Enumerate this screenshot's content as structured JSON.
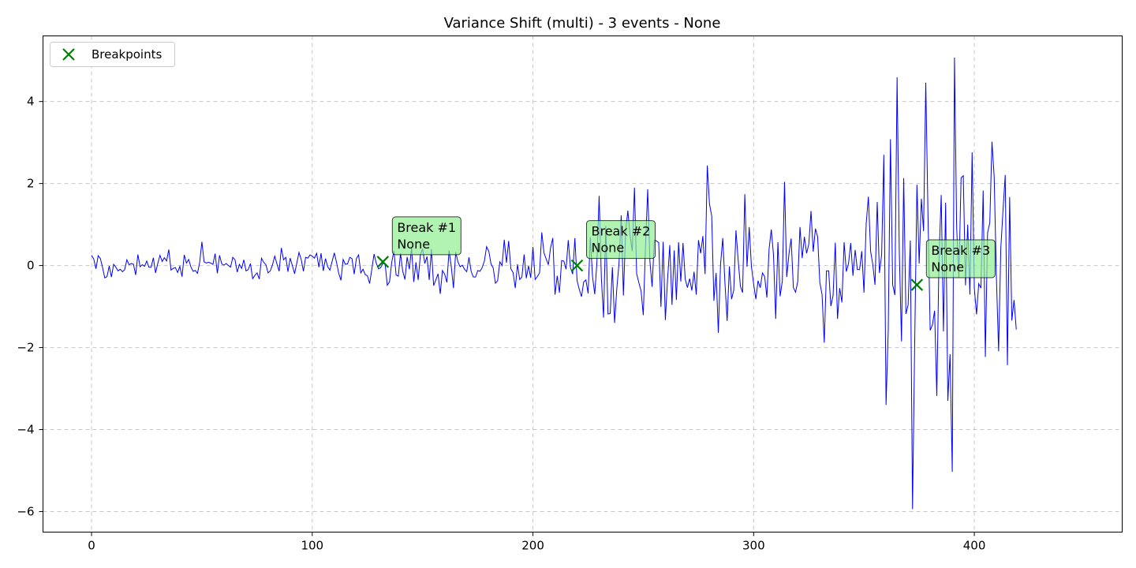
{
  "chart_data": {
    "type": "line",
    "title": "Variance Shift (multi) - 3 events - None",
    "xlabel": "",
    "ylabel": "",
    "xlim": [
      -22,
      467
    ],
    "ylim": [
      -6.5,
      5.6
    ],
    "xticks": [
      0,
      100,
      200,
      300,
      400
    ],
    "yticks": [
      -6,
      -4,
      -2,
      0,
      2,
      4
    ],
    "ytick_labels": [
      "−6",
      "−4",
      "−2",
      "0",
      "2",
      "4"
    ],
    "grid": true,
    "legend": {
      "placement": "upper-left",
      "entries": [
        "Breakpoints"
      ]
    },
    "colors": {
      "series": "#0000ff",
      "breakpoints": "#008000",
      "annotation_fill": "#90ee90"
    },
    "series": [
      {
        "x_start": 0,
        "x_step": 1,
        "values": [
          0.25,
          0.16,
          -0.08,
          0.24,
          0.17,
          -0.05,
          -0.3,
          -0.27,
          -0.01,
          -0.28,
          0.03,
          -0.04,
          -0.13,
          -0.09,
          -0.15,
          -0.1,
          0.14,
          0.02,
          0.05,
          0.03,
          -0.23,
          0.27,
          -0.03,
          0.02,
          -0.02,
          0.11,
          -0.04,
          -0.04,
          0.19,
          -0.18,
          0.05,
          0.25,
          0.1,
          0.19,
          0.11,
          0.39,
          -0.11,
          -0.07,
          -0.05,
          -0.17,
          -0.02,
          -0.27,
          0.26,
          0.06,
          0.15,
          -0.03,
          -0.14,
          -0.12,
          -0.19,
          0.08,
          0.58,
          0.09,
          0.06,
          0.08,
          0.06,
          0.03,
          0.29,
          -0.19,
          0.25,
          0.04,
          0.01,
          0.05,
          0.0,
          -0.04,
          0.2,
          0.14,
          -0.16,
          0.03,
          -0.07,
          0.14,
          -0.13,
          -0.1,
          0.05,
          -0.32,
          -0.24,
          -0.18,
          -0.33,
          0.18,
          0.08,
          0.02,
          -0.18,
          -0.13,
          0.02,
          0.23,
          0.04,
          -0.14,
          0.43,
          0.14,
          0.2,
          -0.15,
          0.18,
          0.0,
          -0.2,
          0.06,
          0.32,
          0.15,
          -0.14,
          0.2,
          0.18,
          0.26,
          0.23,
          0.18,
          0.3,
          -0.04,
          0.3,
          -0.13,
          0.17,
          -0.03,
          -0.11,
          0.1,
          0.31,
          0.08,
          -0.19,
          -0.36,
          0.15,
          0.03,
          0.04,
          0.2,
          0.17,
          -0.21,
          0.17,
          0.26,
          -0.18,
          -0.09,
          -0.22,
          -0.25,
          -0.44,
          -0.09,
          0.28,
          0.06,
          -0.08,
          -0.05,
          0.05,
          0.05,
          -0.48,
          -0.4,
          0.07,
          0.36,
          -0.23,
          -0.26,
          0.3,
          -0.14,
          -0.34,
          0.21,
          -0.09,
          0.43,
          -0.4,
          0.08,
          -0.35,
          0.26,
          0.41,
          0.05,
          0.22,
          -0.35,
          0.4,
          -0.49,
          -0.35,
          -0.2,
          -0.69,
          -0.12,
          -0.21,
          -0.41,
          0.37,
          -0.03,
          -0.55,
          0.33,
          0.09,
          -0.03,
          0.01,
          -0.09,
          -0.15,
          0.2,
          -0.14,
          -0.28,
          -0.28,
          -0.12,
          -0.14,
          -0.05,
          0.11,
          0.46,
          0.35,
          0.04,
          -0.06,
          -0.43,
          -0.37,
          0.09,
          0.0,
          0.63,
          0.07,
          0.6,
          -0.08,
          -0.17,
          -0.55,
          0.03,
          -0.34,
          -0.28,
          0.27,
          -0.31,
          -0.01,
          -0.3,
          0.45,
          -0.34,
          -0.27,
          -0.18,
          0.81,
          0.31,
          0.16,
          0.02,
          0.44,
          0.67,
          -0.71,
          -0.25,
          -0.66,
          0.12,
          0.11,
          -0.09,
          0.62,
          -0.05,
          -0.21,
          0.67,
          -0.37,
          -0.58,
          -0.76,
          -0.4,
          -0.35,
          -0.68,
          0.69,
          -0.27,
          -0.7,
          0.09,
          1.7,
          -0.3,
          -1.27,
          0.97,
          -1.18,
          -1.17,
          -0.04,
          -1.4,
          -0.57,
          0.06,
          1.22,
          -0.73,
          0.82,
          1.34,
          0.74,
          0.35,
          1.9,
          -0.2,
          -0.42,
          -0.62,
          -1.21,
          0.46,
          1.86,
          0.11,
          -0.52,
          0.62,
          0.6,
          0.56,
          -1.01,
          0.58,
          -1.33,
          -0.34,
          0.5,
          -0.96,
          0.37,
          -0.84,
          0.57,
          -0.39,
          0.55,
          -0.33,
          -0.54,
          -0.32,
          -0.61,
          -0.15,
          -0.71,
          0.62,
          0.3,
          0.72,
          -0.21,
          2.44,
          1.5,
          1.21,
          -0.86,
          -0.18,
          -1.64,
          0.02,
          0.67,
          -0.42,
          -1.35,
          -0.02,
          -0.82,
          -0.6,
          0.86,
          0.13,
          -0.5,
          -0.66,
          1.74,
          -0.03,
          0.94,
          -0.02,
          -0.45,
          -0.82,
          -0.37,
          -0.54,
          -0.18,
          -0.27,
          -0.78,
          0.4,
          0.88,
          0.26,
          -1.3,
          0.57,
          -0.75,
          -0.38,
          2.04,
          -0.28,
          0.28,
          0.66,
          -0.54,
          -0.65,
          -0.39,
          0.94,
          0.18,
          0.7,
          0.3,
          0.52,
          1.33,
          0.34,
          0.9,
          0.7,
          -0.42,
          -0.7,
          -1.88,
          -0.13,
          -0.13,
          -0.99,
          -0.73,
          0.56,
          -1.3,
          -0.55,
          -0.9,
          0.57,
          -0.15,
          0.05,
          0.55,
          -0.25,
          0.38,
          -0.1,
          -0.1,
          0.35,
          -0.66,
          1.02,
          1.68,
          0.35,
          0.02,
          -0.47,
          1.55,
          -0.18,
          0.26,
          2.7,
          -3.4,
          -1.59,
          3.08,
          -0.47,
          -0.72,
          4.59,
          0.35,
          -1.85,
          2.13,
          -1.18,
          -0.96,
          0.61,
          -5.94,
          -1.82,
          1.97,
          0.05,
          1.63,
          0.84,
          4.46,
          1.24,
          -1.58,
          -1.45,
          -1.1,
          -3.18,
          0.2,
          1.72,
          -1.61,
          1.53,
          -3.3,
          -2.16,
          -5.03,
          5.07,
          0.92,
          -0.3,
          2.14,
          2.19,
          -0.48,
          1.0,
          -0.71,
          2.76,
          -0.55,
          -1.19,
          -0.44,
          -0.55,
          1.83,
          -2.23,
          0.8,
          1.04,
          3.02,
          2.16,
          -0.28,
          -2.09,
          0.42,
          1.35,
          2.21,
          -2.43,
          1.67,
          -1.34,
          -0.84,
          -1.56
        ]
      }
    ],
    "breakpoints": [
      {
        "x": 132,
        "y": 0.09,
        "label_line1": "Break #1",
        "label_line2": "None"
      },
      {
        "x": 220,
        "y": 0.0,
        "label_line1": "Break #2",
        "label_line2": "None"
      },
      {
        "x": 374,
        "y": -0.47,
        "label_line1": "Break #3",
        "label_line2": "None"
      }
    ]
  }
}
